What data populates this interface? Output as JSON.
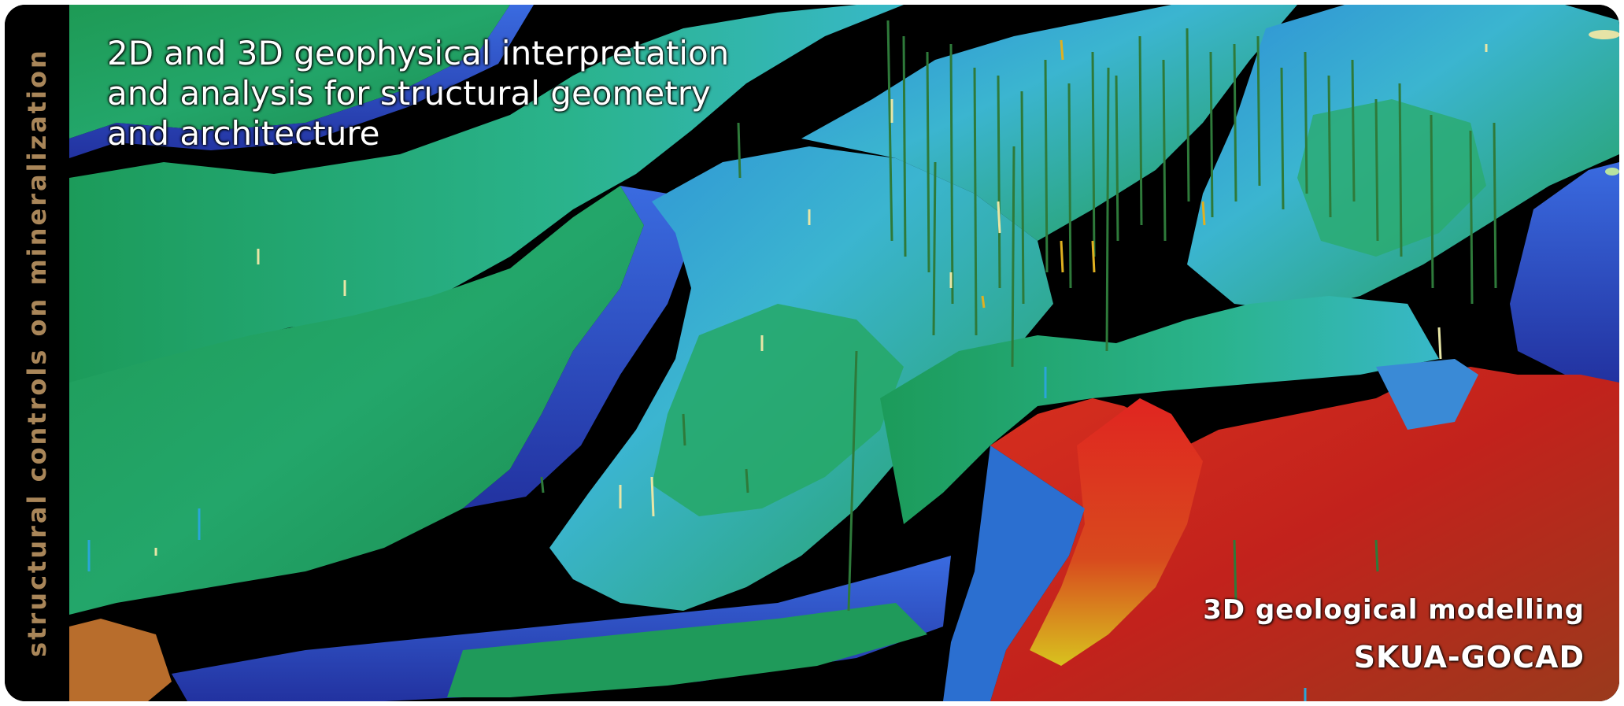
{
  "sidebar": {
    "label": "structural controls on mineralization"
  },
  "headline": {
    "lines": [
      "2D and 3D geophysical interpretation",
      "and analysis for structural geometry",
      "and architecture"
    ]
  },
  "captions": {
    "modelling": "3D geological modelling",
    "product": "SKUA-GOCAD"
  },
  "colors": {
    "sidebar_text": "#a98659",
    "background": "#000000",
    "surface_green": "#1f9a5e",
    "surface_cyan": "#33b3c4",
    "surface_blue": "#2a4fc8",
    "surface_red": "#d42a22",
    "surface_yellow": "#d6c41f",
    "caption_text": "#ffffff"
  }
}
